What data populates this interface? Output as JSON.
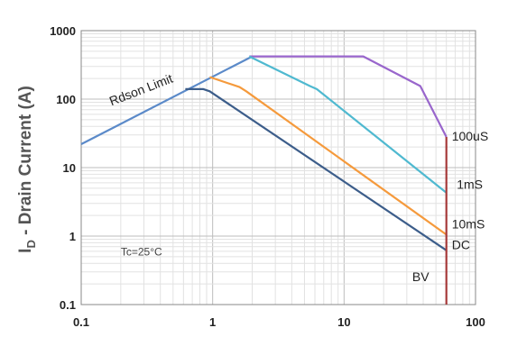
{
  "chart_data": {
    "type": "line",
    "title": "",
    "ylabel_main": "I",
    "ylabel_sub": "D",
    "ylabel_rest": " - Drain Current (A)",
    "xlabel": "",
    "xscale": "log",
    "yscale": "log",
    "xlim": [
      0.1,
      100
    ],
    "ylim": [
      0.1,
      1000
    ],
    "x_ticks": [
      {
        "value": 0.1,
        "label": "0.1"
      },
      {
        "value": 1,
        "label": "1"
      },
      {
        "value": 10,
        "label": "10"
      },
      {
        "value": 100,
        "label": "100"
      }
    ],
    "y_ticks": [
      {
        "value": 1000,
        "label": "1000"
      },
      {
        "value": 100,
        "label": "100"
      },
      {
        "value": 10,
        "label": "10"
      },
      {
        "value": 1,
        "label": "1"
      },
      {
        "value": 0.1,
        "label": "0.1"
      }
    ],
    "grid": true,
    "series": [
      {
        "name": "Rdson Limit",
        "color": "#5b8ac9",
        "points": [
          [
            0.1,
            22
          ],
          [
            2.0,
            420
          ]
        ]
      },
      {
        "name": "100uS",
        "color": "#9966cc",
        "points": [
          [
            1.9,
            420
          ],
          [
            14,
            420
          ],
          [
            38,
            155
          ],
          [
            60,
            28
          ]
        ]
      },
      {
        "name": "1mS",
        "color": "#4fb9d0",
        "points": [
          [
            1.9,
            420
          ],
          [
            5.5,
            155
          ],
          [
            6.2,
            140
          ],
          [
            60,
            4.3
          ]
        ]
      },
      {
        "name": "10mS",
        "color": "#f59a3c",
        "points": [
          [
            0.95,
            210
          ],
          [
            1.6,
            150
          ],
          [
            1.8,
            130
          ],
          [
            60,
            1.05
          ]
        ]
      },
      {
        "name": "DC",
        "color": "#3c5d8a",
        "points": [
          [
            0.62,
            140
          ],
          [
            0.85,
            140
          ],
          [
            0.95,
            130
          ],
          [
            60,
            0.62
          ]
        ]
      },
      {
        "name": "BV",
        "color": "#a63a3a",
        "points": [
          [
            60,
            28
          ],
          [
            60,
            0.1
          ]
        ]
      }
    ],
    "annotations": [
      {
        "text": "Rdson Limit",
        "x": 0.17,
        "y": 80,
        "rotate": -21
      },
      {
        "text": "100uS",
        "x": 66,
        "y": 25
      },
      {
        "text": "1mS",
        "x": 72,
        "y": 4.9
      },
      {
        "text": "10mS",
        "x": 66,
        "y": 1.3
      },
      {
        "text": "DC",
        "x": 66,
        "y": 0.64
      },
      {
        "text": "BV",
        "x": 33,
        "y": 0.22
      },
      {
        "text": "Tc=25°C",
        "x": 0.2,
        "y": 0.52
      }
    ]
  }
}
